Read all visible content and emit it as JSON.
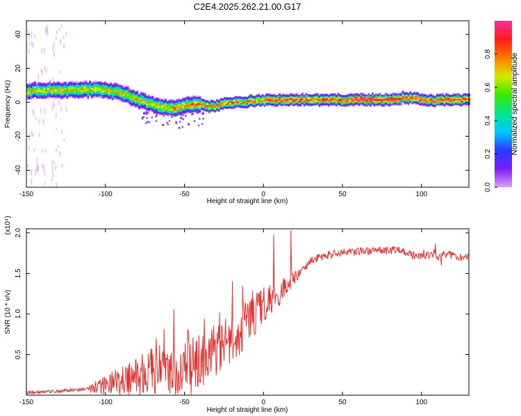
{
  "title": "C2E4.2025.262.21.00.G17",
  "colors": {
    "snr_line": "#e8302e",
    "axis": "#000000",
    "colormap": [
      "#d9a0ef",
      "#7a1cff",
      "#2a3cff",
      "#00c8ff",
      "#00e68a",
      "#3be800",
      "#d8e800",
      "#ff7a00",
      "#ff1a1a",
      "#ff2d9a"
    ]
  },
  "chart_data": [
    {
      "type": "heatmap",
      "xlabel": "Height of straight line (km)",
      "ylabel": "Frequency (Hz)",
      "xlim": [
        -150,
        130
      ],
      "ylim": [
        -50,
        48
      ],
      "xticks": [
        -150,
        -100,
        -50,
        0,
        50,
        100
      ],
      "yticks": [
        -40,
        -20,
        0,
        20,
        40
      ],
      "ridge": {
        "x": [
          -150,
          -140,
          -130,
          -120,
          -110,
          -100,
          -95,
          -90,
          -85,
          -80,
          -75,
          -70,
          -65,
          -60,
          -55,
          -50,
          -45,
          -40,
          -35,
          -30,
          -25,
          -20,
          -15,
          -10,
          -5,
          0,
          5,
          10,
          20,
          30,
          40,
          50,
          60,
          70,
          80,
          85,
          88,
          92,
          96,
          100,
          105,
          110,
          115,
          120,
          125,
          130
        ],
        "y": [
          7,
          7,
          7,
          7.5,
          7.5,
          7,
          6.5,
          5.5,
          3.5,
          1.5,
          0,
          -1.5,
          -2.5,
          -3,
          -3.5,
          -2,
          -1,
          -1.5,
          -2.5,
          -2,
          -0.5,
          0,
          0.5,
          0.5,
          1,
          1,
          1.5,
          1.5,
          1.5,
          1.5,
          1.5,
          1.5,
          1.5,
          1.5,
          1.5,
          2,
          3,
          2.5,
          2,
          1.5,
          1,
          1,
          1.5,
          1.5,
          1.5,
          1.5
        ]
      },
      "colorbar": {
        "label": "Normalized spectral amplitude",
        "range": [
          0,
          1
        ],
        "ticks": [
          0.0,
          0.2,
          0.4,
          0.6,
          0.8
        ]
      }
    },
    {
      "type": "line",
      "xlabel": "Height of straight line (km)",
      "ylabel": "SNR (10 * v/v)",
      "yscale_label": "(x10⁴)",
      "xlim": [
        -150,
        130
      ],
      "ylim": [
        0,
        2.05
      ],
      "xticks": [
        -150,
        -100,
        -50,
        0,
        50,
        100
      ],
      "yticks": [
        0.5,
        1.0,
        1.5,
        2.0
      ],
      "series": [
        {
          "x": [
            -150,
            -140,
            -130,
            -120,
            -110,
            -100,
            -95,
            -90,
            -85,
            -80,
            -75,
            -70,
            -65,
            -60,
            -55,
            -50,
            -45,
            -40,
            -35,
            -30,
            -25,
            -20,
            -15,
            -10,
            -5,
            0,
            5,
            10,
            15,
            20,
            25,
            30,
            35,
            40,
            45,
            50,
            60,
            70,
            80,
            85,
            88,
            90,
            95,
            100,
            105,
            110,
            115,
            120,
            125,
            130
          ],
          "values": [
            0.03,
            0.04,
            0.05,
            0.06,
            0.08,
            0.12,
            0.15,
            0.18,
            0.21,
            0.25,
            0.28,
            0.3,
            0.32,
            0.3,
            0.28,
            0.3,
            0.35,
            0.4,
            0.45,
            0.5,
            0.62,
            0.7,
            0.8,
            0.9,
            1.0,
            1.1,
            1.2,
            1.25,
            1.35,
            1.45,
            1.55,
            1.65,
            1.7,
            1.72,
            1.74,
            1.76,
            1.77,
            1.78,
            1.78,
            1.79,
            1.8,
            1.76,
            1.72,
            1.7,
            1.72,
            1.71,
            1.74,
            1.72,
            1.7,
            1.7
          ]
        }
      ]
    }
  ]
}
